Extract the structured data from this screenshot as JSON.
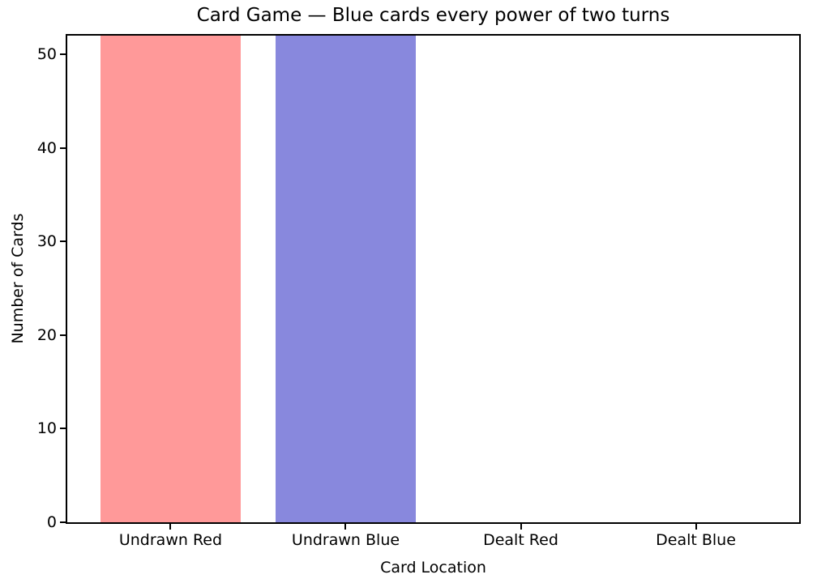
{
  "chart_data": {
    "type": "bar",
    "title": "Card Game — Blue cards every power of two turns",
    "xlabel": "Card Location",
    "ylabel": "Number of Cards",
    "categories": [
      "Undrawn Red",
      "Undrawn Blue",
      "Dealt Red",
      "Dealt Blue"
    ],
    "values": [
      52,
      52,
      0,
      0
    ],
    "bar_colors": [
      "#ff9999",
      "#8888dd",
      "#ff9999",
      "#8888dd"
    ],
    "bar_width": 0.8,
    "xlim": [
      -0.59,
      3.59
    ],
    "ylim": [
      0,
      52
    ],
    "yticks": [
      0,
      10,
      20,
      30,
      40,
      50
    ],
    "grid": false,
    "legend_position": "none",
    "background_color": "#ffffff",
    "axis_color": "#000000"
  }
}
